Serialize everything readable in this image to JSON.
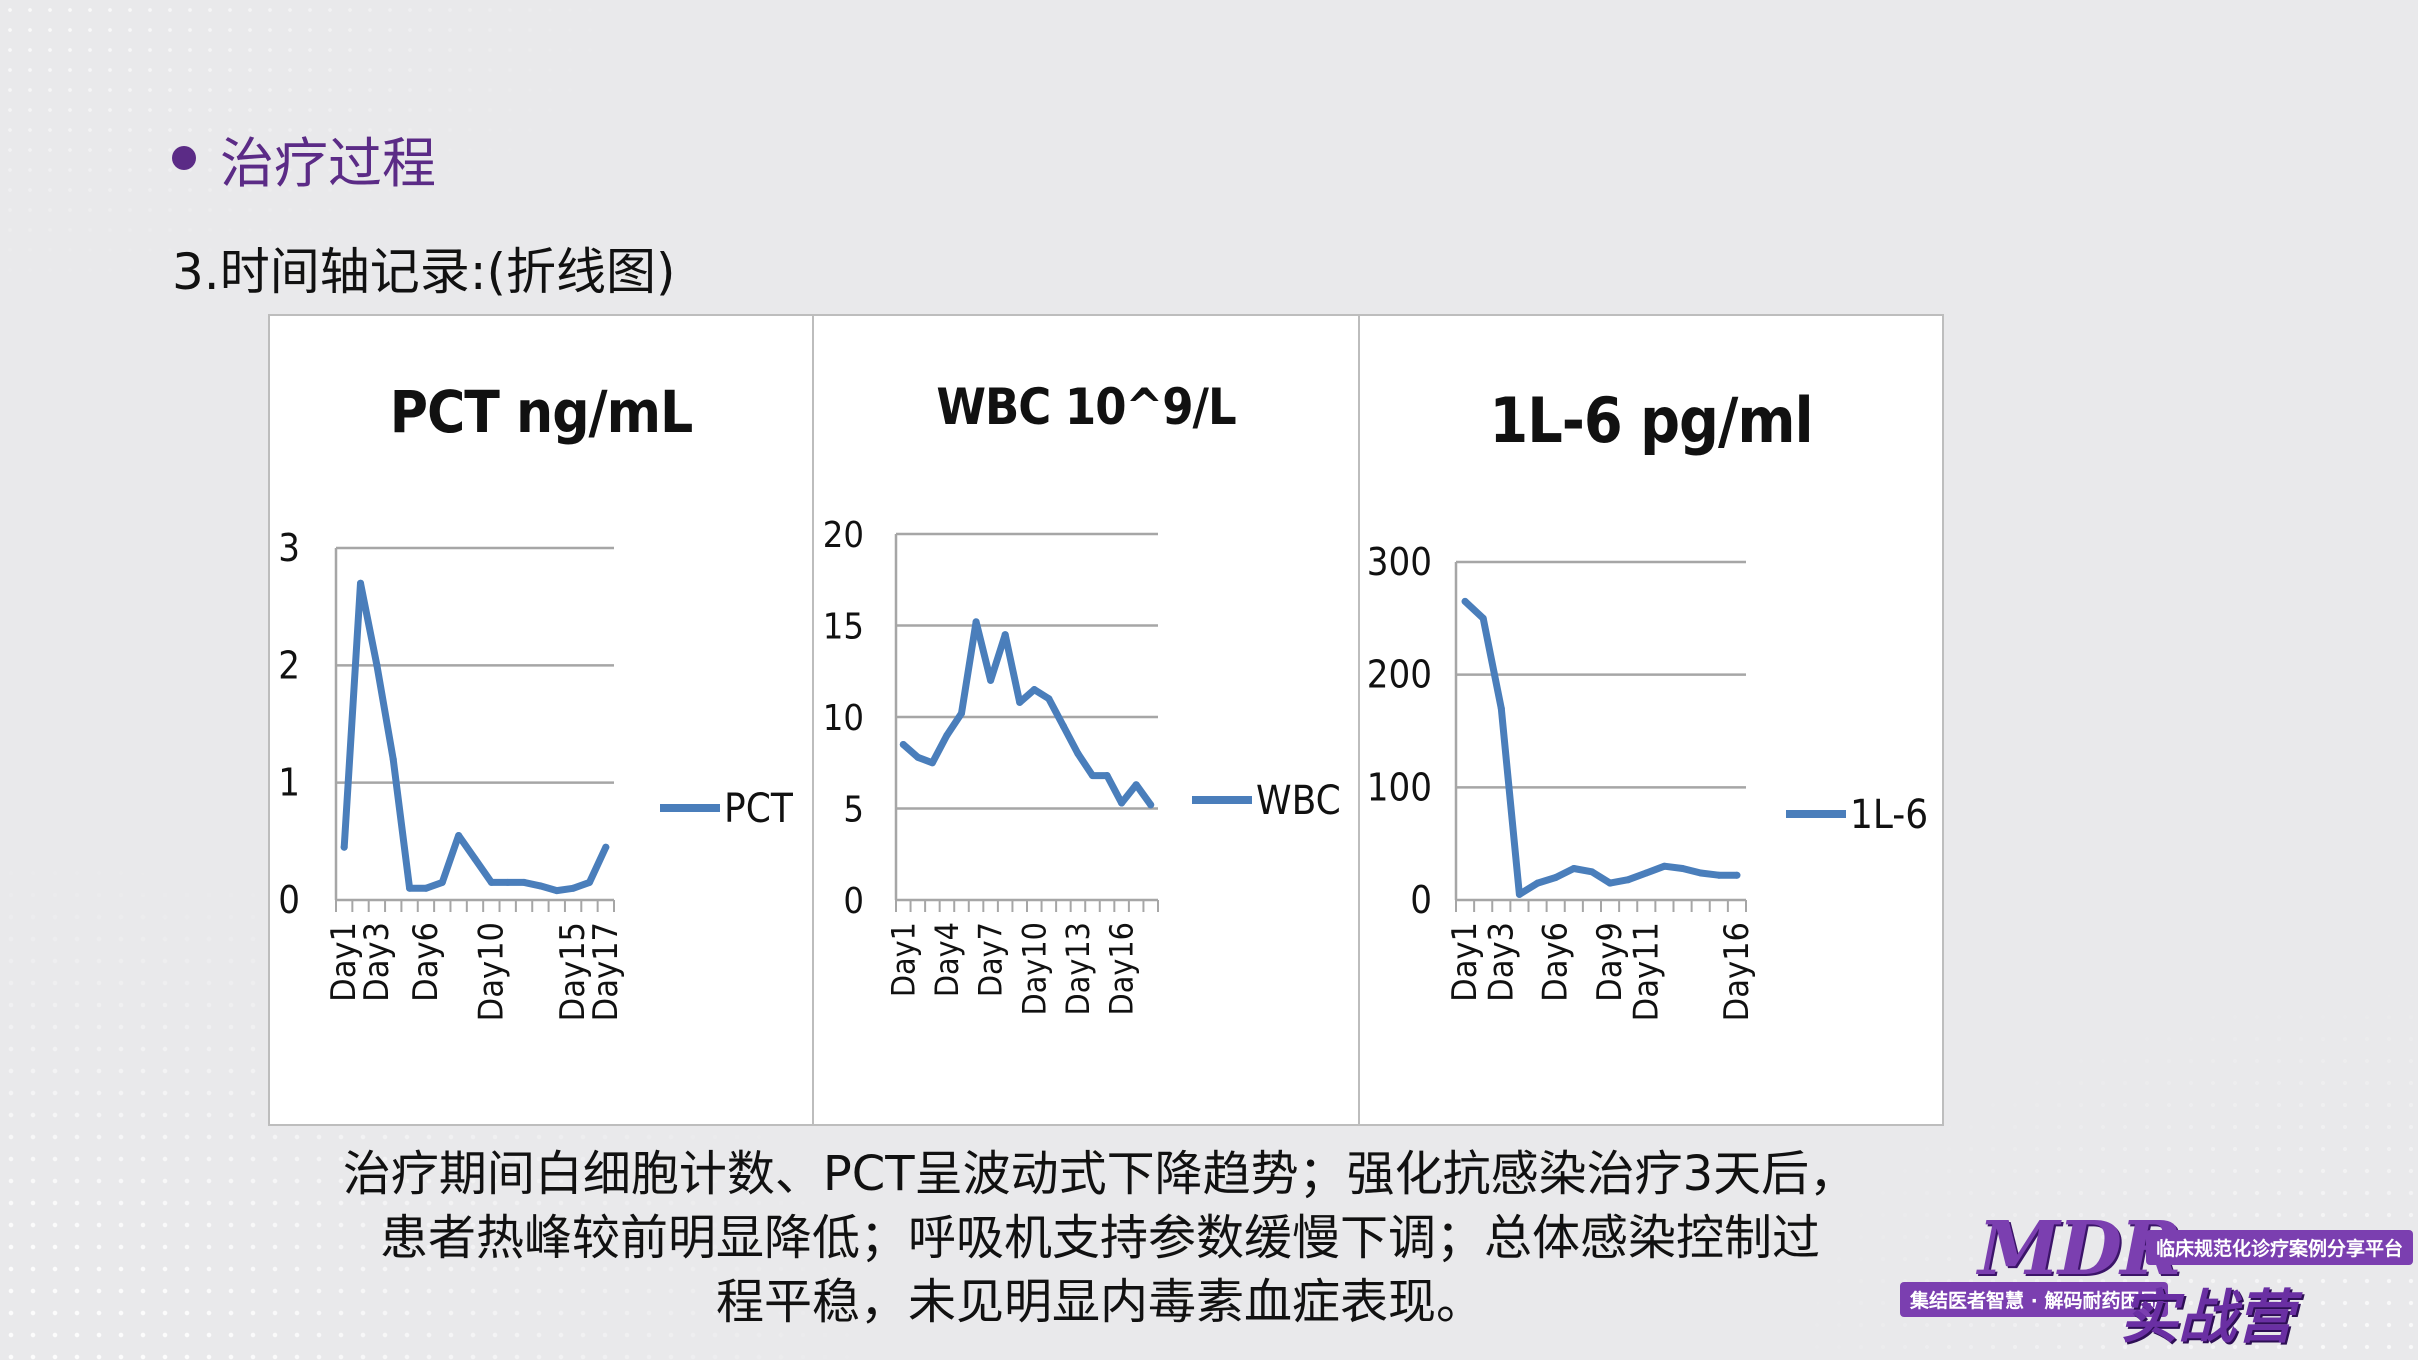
{
  "slide": {
    "heading": "治疗过程",
    "subheading": "3.时间轴记录:(折线图)",
    "caption_lines": [
      "治疗期间白细胞计数、PCT呈波动式下降趋势；强化抗感染治疗3天后，",
      "患者热峰较前明显降低；呼吸机支持参数缓慢下调；总体感染控制过",
      "程平稳，未见明显内毒素血症表现。"
    ],
    "logo": {
      "mdr": "MDR",
      "tag_top": "临床规范化诊疗案例分享平台",
      "tag_bottom": "集结医者智慧 · 解码耐药困局",
      "camp": "实战营"
    }
  },
  "colors": {
    "accent": "#5b2b86",
    "line": "#4a7ebb",
    "grid": "#a6a6a6",
    "brand_purple": "#7b3fb0"
  },
  "chart_data": [
    {
      "type": "line",
      "title": "PCT ng/mL",
      "series": [
        {
          "name": "PCT",
          "x": [
            "Day1",
            "Day2",
            "Day3",
            "Day4",
            "Day5",
            "Day6",
            "Day7",
            "Day8",
            "Day9",
            "Day10",
            "Day11",
            "Day12",
            "Day13",
            "Day14",
            "Day15",
            "Day16",
            "Day17"
          ],
          "values": [
            0.45,
            2.7,
            2.0,
            1.2,
            0.1,
            0.1,
            0.15,
            0.55,
            0.35,
            0.15,
            0.15,
            0.15,
            0.12,
            0.08,
            0.1,
            0.15,
            0.45
          ]
        }
      ],
      "xtick_labels": [
        "Day1",
        "Day3",
        "Day6",
        "Day10",
        "Day15",
        "Day17"
      ],
      "yticks": [
        0,
        1,
        2,
        3
      ],
      "ylim": [
        0,
        3
      ],
      "legend_position": "right",
      "grid": true
    },
    {
      "type": "line",
      "title": "WBC 10^9/L",
      "series": [
        {
          "name": "WBC",
          "x": [
            "Day1",
            "Day2",
            "Day3",
            "Day4",
            "Day5",
            "Day6",
            "Day7",
            "Day8",
            "Day9",
            "Day10",
            "Day11",
            "Day12",
            "Day13",
            "Day14",
            "Day15",
            "Day16",
            "Day17",
            "Day18"
          ],
          "values": [
            8.5,
            7.8,
            7.5,
            9.0,
            10.2,
            15.2,
            12.0,
            14.5,
            10.8,
            11.5,
            11.0,
            9.5,
            8.0,
            6.8,
            6.8,
            5.3,
            6.3,
            5.2
          ]
        }
      ],
      "xtick_labels": [
        "Day1",
        "Day4",
        "Day7",
        "Day10",
        "Day13",
        "Day16"
      ],
      "yticks": [
        0,
        5,
        10,
        15,
        20
      ],
      "ylim": [
        0,
        20
      ],
      "legend_position": "right",
      "grid": true
    },
    {
      "type": "line",
      "title": "1L-6 pg/ml",
      "series": [
        {
          "name": "1L-6",
          "x": [
            "Day1",
            "Day2",
            "Day3",
            "Day4",
            "Day5",
            "Day6",
            "Day7",
            "Day8",
            "Day9",
            "Day10",
            "Day11",
            "Day12",
            "Day13",
            "Day14",
            "Day15",
            "Day16"
          ],
          "values": [
            265,
            250,
            170,
            5,
            15,
            20,
            28,
            25,
            15,
            18,
            24,
            30,
            28,
            24,
            22,
            22
          ]
        }
      ],
      "xtick_labels": [
        "Day1",
        "Day3",
        "Day6",
        "Day9",
        "Day11",
        "Day16"
      ],
      "yticks": [
        0,
        100,
        200,
        300
      ],
      "ylim": [
        0,
        300
      ],
      "legend_position": "right",
      "grid": true
    }
  ]
}
